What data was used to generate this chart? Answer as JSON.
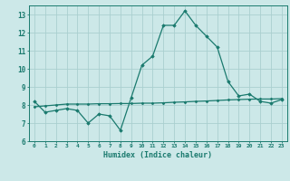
{
  "x_values": [
    0,
    1,
    2,
    3,
    4,
    5,
    6,
    7,
    8,
    9,
    10,
    11,
    12,
    13,
    14,
    15,
    16,
    17,
    18,
    19,
    20,
    21,
    22,
    23
  ],
  "line1_y": [
    8.2,
    7.6,
    7.7,
    7.8,
    7.7,
    7.0,
    7.5,
    7.4,
    6.6,
    8.4,
    10.2,
    10.7,
    12.4,
    12.4,
    13.2,
    12.4,
    11.8,
    11.2,
    9.3,
    8.5,
    8.6,
    8.2,
    8.1,
    8.3
  ],
  "line2_y": [
    7.9,
    7.95,
    8.0,
    8.05,
    8.05,
    8.05,
    8.07,
    8.07,
    8.08,
    8.08,
    8.1,
    8.1,
    8.12,
    8.15,
    8.17,
    8.2,
    8.22,
    8.25,
    8.28,
    8.3,
    8.32,
    8.33,
    8.33,
    8.35
  ],
  "line_color": "#1a7a6e",
  "bg_color": "#cce8e8",
  "grid_color": "#aacfcf",
  "xlabel": "Humidex (Indice chaleur)",
  "ylim": [
    6.0,
    13.5
  ],
  "xlim": [
    -0.5,
    23.5
  ],
  "yticks": [
    6,
    7,
    8,
    9,
    10,
    11,
    12,
    13
  ],
  "xticks": [
    0,
    1,
    2,
    3,
    4,
    5,
    6,
    7,
    8,
    9,
    10,
    11,
    12,
    13,
    14,
    15,
    16,
    17,
    18,
    19,
    20,
    21,
    22,
    23
  ]
}
